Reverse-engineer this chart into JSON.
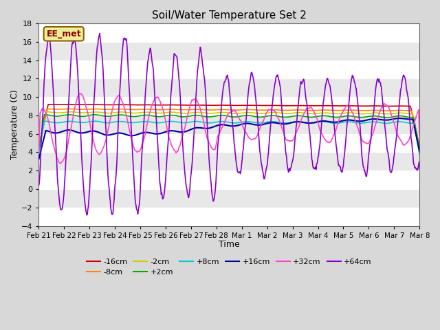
{
  "title": "Soil/Water Temperature Set 2",
  "xlabel": "Time",
  "ylabel": "Temperature (C)",
  "ylim": [
    -4,
    18
  ],
  "yticks": [
    -4,
    -2,
    0,
    2,
    4,
    6,
    8,
    10,
    12,
    14,
    16,
    18
  ],
  "bg_color": "#d8d8d8",
  "watermark_text": "EE_met",
  "series_order": [
    "-16cm",
    "-8cm",
    "-2cm",
    "+2cm",
    "+8cm",
    "+16cm",
    "+32cm",
    "+64cm"
  ],
  "series": {
    "-16cm": {
      "color": "#cc0000",
      "lw": 1.2
    },
    "-8cm": {
      "color": "#ff8800",
      "lw": 1.2
    },
    "-2cm": {
      "color": "#cccc00",
      "lw": 1.2
    },
    "+2cm": {
      "color": "#00aa00",
      "lw": 1.2
    },
    "+8cm": {
      "color": "#00cccc",
      "lw": 1.2
    },
    "+16cm": {
      "color": "#000099",
      "lw": 1.5
    },
    "+32cm": {
      "color": "#ff44cc",
      "lw": 1.2
    },
    "+64cm": {
      "color": "#8800cc",
      "lw": 1.2
    }
  },
  "xtick_labels": [
    "Feb 21",
    "Feb 22",
    "Feb 23",
    "Feb 24",
    "Feb 25",
    "Feb 26",
    "Feb 27",
    "Feb 28",
    "Mar 1",
    "Mar 2",
    "Mar 3",
    "Mar 4",
    "Mar 5",
    "Mar 6",
    "Mar 7",
    "Mar 8"
  ],
  "legend_row1": [
    "-16cm",
    "-8cm",
    "-2cm",
    "+2cm",
    "+8cm",
    "+16cm"
  ],
  "legend_row2": [
    "+32cm",
    "+64cm"
  ]
}
